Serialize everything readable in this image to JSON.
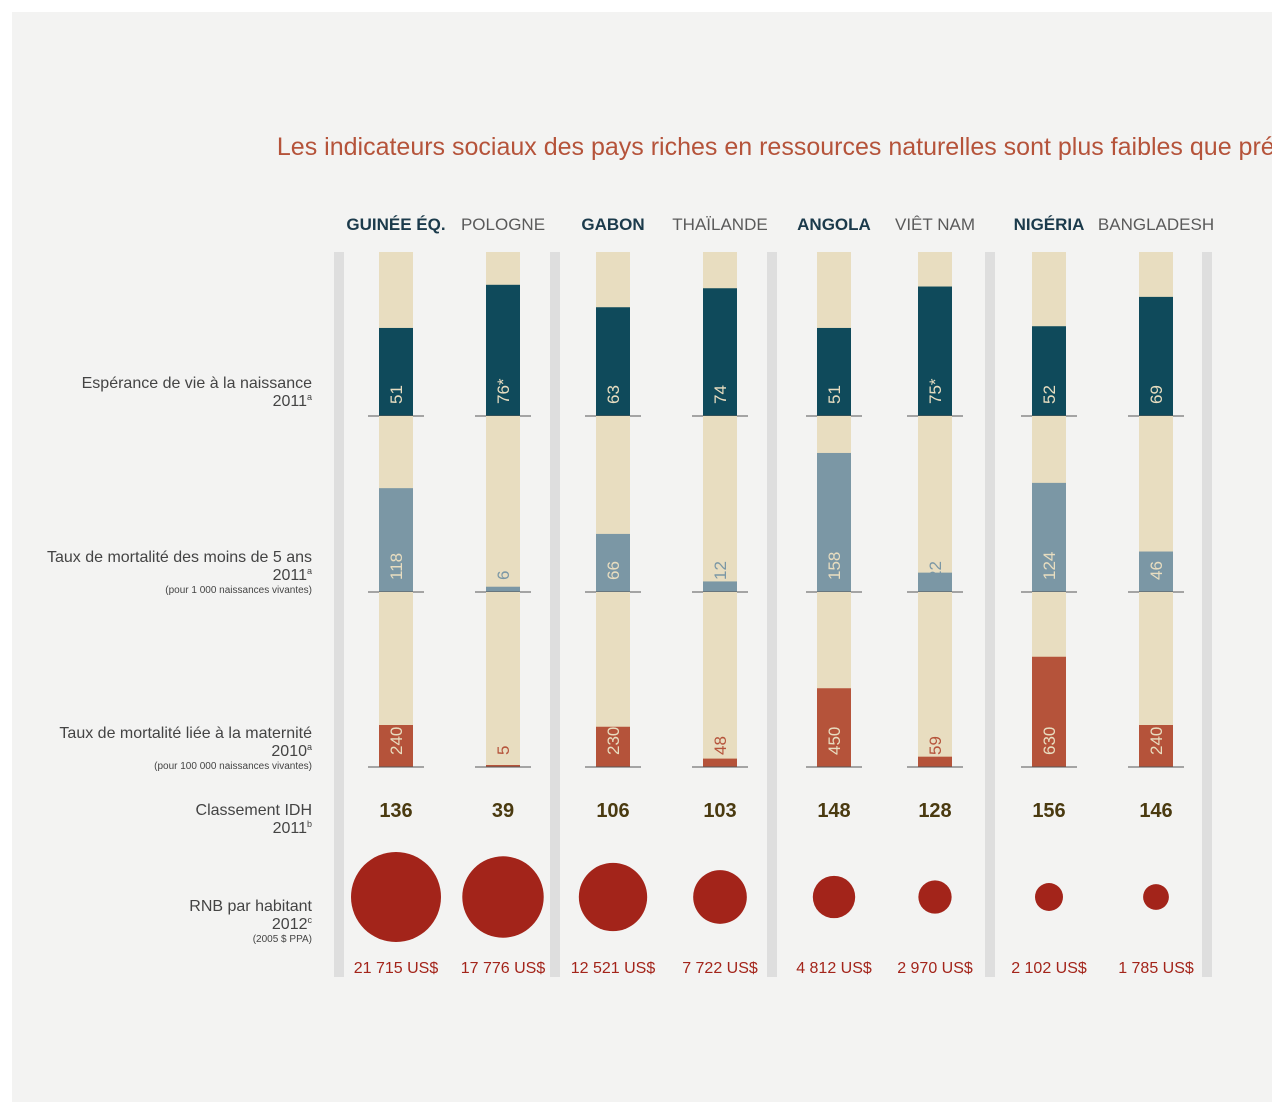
{
  "chart_data": {
    "type": "bar",
    "title": "Les indicateurs sociaux des pays riches en ressources naturelles sont plus faibles que prévu",
    "categories": [
      "GUINÉE ÉQ.",
      "POLOGNE",
      "GABON",
      "THAÏLANDE",
      "ANGOLA",
      "VIÊT NAM",
      "NIGÉRIA",
      "BANGLADESH"
    ],
    "resource_rich": [
      true,
      false,
      true,
      false,
      true,
      false,
      true,
      false
    ],
    "rows": [
      {
        "key": "life_expectancy",
        "label": "Espérance de vie à la naissance",
        "year": "2011",
        "note_mark": "a",
        "unit_note": "",
        "values": [
          51,
          76,
          63,
          74,
          51,
          75,
          52,
          69
        ],
        "value_labels": [
          "51",
          "76*",
          "63",
          "74",
          "51",
          "75*",
          "52",
          "69"
        ],
        "ylim": [
          0,
          95
        ],
        "color": "#0f4a5b",
        "label_color": "#e8ddc0"
      },
      {
        "key": "under5_mortality",
        "label": "Taux de mortalité des moins de 5 ans",
        "year": "2011",
        "note_mark": "a",
        "unit_note": "(pour 1 000 naissances vivantes)",
        "values": [
          118,
          6,
          66,
          12,
          158,
          22,
          124,
          46
        ],
        "value_labels": [
          "118",
          "6",
          "66",
          "12",
          "158",
          "22",
          "124",
          "46"
        ],
        "ylim": [
          0,
          200
        ],
        "color": "#7b97a5",
        "label_color": "#e8ddc0"
      },
      {
        "key": "maternal_mortality",
        "label": "Taux de mortalité liée à la maternité",
        "year": "2010",
        "note_mark": "a",
        "unit_note": "(pour 100 000 naissances vivantes)",
        "values": [
          240,
          5,
          230,
          48,
          450,
          59,
          630,
          240
        ],
        "value_labels": [
          "240",
          "5",
          "230",
          "48",
          "450",
          "59",
          "630",
          "240"
        ],
        "ylim": [
          0,
          1000
        ],
        "color": "#b5533a",
        "label_color": "#e8ddc0"
      }
    ],
    "hdi_rank": {
      "label": "Classement IDH",
      "year": "2011",
      "note_mark": "b",
      "values": [
        136,
        39,
        106,
        103,
        148,
        128,
        156,
        146
      ]
    },
    "gni_per_capita": {
      "label": "RNB par habitant",
      "year": "2012",
      "note_mark": "c",
      "unit_note": "(2005 $ PPA)",
      "values": [
        21715,
        17776,
        12521,
        7722,
        4812,
        2970,
        2102,
        1785
      ],
      "value_labels": [
        "21 715 US$",
        "17 776 US$",
        "12 521 US$",
        "7 722 US$",
        "4 812 US$",
        "2 970 US$",
        "2 102 US$",
        "1 785 US$"
      ],
      "color": "#a3241a"
    },
    "colors": {
      "track": "#e8ddc0",
      "group_separator": "#dedede",
      "baseline": "#555555"
    }
  }
}
